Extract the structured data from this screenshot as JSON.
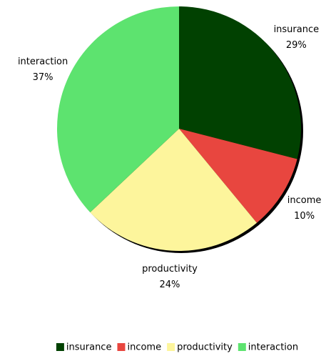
{
  "chart_data": {
    "type": "pie",
    "categories": [
      "insurance",
      "income",
      "productivity",
      "interaction"
    ],
    "values": [
      29,
      10,
      24,
      37
    ],
    "value_labels": [
      "29%",
      "10%",
      "24%",
      "37%"
    ],
    "colors": [
      "#014101",
      "#e8463f",
      "#fdf59c",
      "#5de36f"
    ],
    "legend": "bottom"
  }
}
